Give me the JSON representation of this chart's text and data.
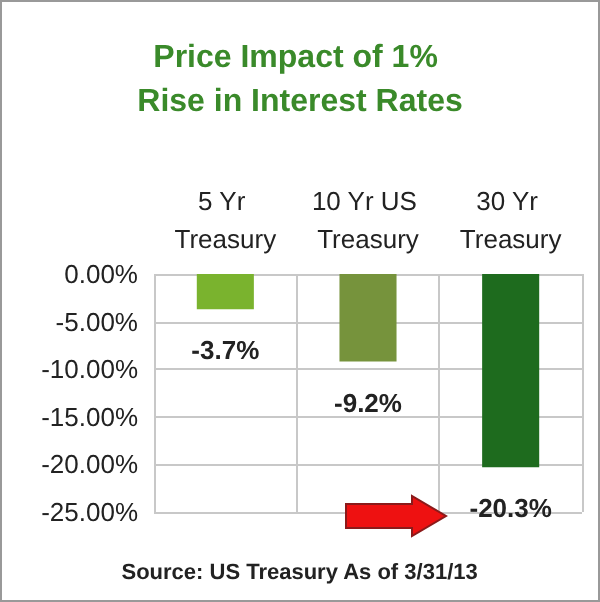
{
  "chart_data": {
    "type": "bar",
    "title": "Price Impact of 1% Rise in Interest Rates",
    "categories": [
      "5 Yr Treasury",
      "10 Yr US Treasury",
      "30 Yr Treasury"
    ],
    "values": [
      -3.7,
      -9.2,
      -20.3
    ],
    "colors": [
      "#7ab32e",
      "#76933c",
      "#1e6b1e"
    ],
    "value_labels": [
      "-3.7%",
      "-9.2%",
      "-20.3%"
    ],
    "ylim": [
      -25,
      0
    ],
    "yticks": [
      {
        "value": 0,
        "label": "0.00%"
      },
      {
        "value": -5,
        "label": "-5.00%"
      },
      {
        "value": -10,
        "label": "-10.00%"
      },
      {
        "value": -15,
        "label": "-15.00%"
      },
      {
        "value": -20,
        "label": "-20.00%"
      },
      {
        "value": -25,
        "label": "-25.00%"
      }
    ],
    "grid": true,
    "annotations": [
      "Source: US Treasury As of 3/31/13"
    ]
  }
}
